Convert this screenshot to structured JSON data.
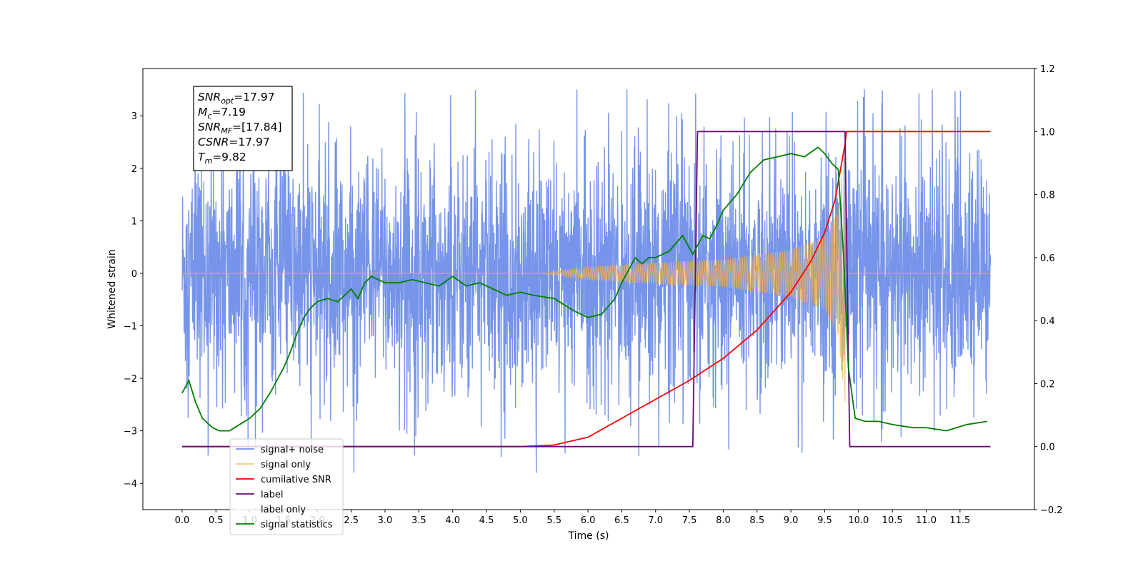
{
  "chart_data": {
    "type": "line",
    "xlabel": "Time (s)",
    "ylabel_left": "Whitened strain",
    "ylabel_right": "",
    "xlim": [
      -0.58,
      12.6
    ],
    "ylim_left": [
      -4.5,
      3.9
    ],
    "ylim_right": [
      -0.2,
      1.2
    ],
    "xticks": [
      0.0,
      0.5,
      1.0,
      1.5,
      2.0,
      2.5,
      3.0,
      3.5,
      4.0,
      4.5,
      5.0,
      5.5,
      6.0,
      6.5,
      7.0,
      7.5,
      8.0,
      8.5,
      9.0,
      9.5,
      10.0,
      10.5,
      11.0,
      11.5
    ],
    "xtick_labels": [
      "0.0",
      "0.5",
      "1.0",
      "1.5",
      "2.0",
      "2.5",
      "3.0",
      "3.5",
      "4.0",
      "4.5",
      "5.0",
      "5.5",
      "6.0",
      "6.5",
      "7.0",
      "7.5",
      "8.0",
      "8.5",
      "9.0",
      "9.5",
      "10.0",
      "10.5",
      "11.0",
      "11.5"
    ],
    "yticks_left": [
      -4,
      -3,
      -2,
      -1,
      0,
      1,
      2,
      3
    ],
    "ytick_labels_left": [
      "−4",
      "−3",
      "−2",
      "−1",
      "0",
      "1",
      "2",
      "3"
    ],
    "yticks_right": [
      -0.2,
      0.0,
      0.2,
      0.4,
      0.6,
      0.8,
      1.0,
      1.2
    ],
    "ytick_labels_right": [
      "−0.2",
      "0.0",
      "0.2",
      "0.4",
      "0.6",
      "0.8",
      "1.0",
      "1.2"
    ],
    "grid": false,
    "legend_position": "lower-left",
    "annotation": [
      {
        "base": "SNR",
        "sub": "opt",
        "value": "=17.97"
      },
      {
        "base": "M",
        "sub": "c",
        "value": "=7.19"
      },
      {
        "base": "SNR",
        "sub": "MF",
        "value": "=[17.84]"
      },
      {
        "base": "CSNR",
        "sub": "",
        "value": "=17.97"
      },
      {
        "base": "T",
        "sub": "m",
        "value": "=9.82"
      }
    ],
    "series": [
      {
        "name": "signal+ noise",
        "axis": "left",
        "color": "#6f8ee8",
        "style": "dense noise trace, roughly ±1.4 baseline with peaks to about ±3.5",
        "approx_envelope": {
          "t_start": 0.0,
          "t_end": 11.95,
          "baseline_amplitude": 1.4,
          "max_spike": 3.5
        }
      },
      {
        "name": "signal only",
        "axis": "left",
        "color": "#f5b04e",
        "style": "chirp oscillation growing in amplitude from about t=5.3 to merger near t=9.82",
        "approx_envelope": {
          "t": [
            5.3,
            6.0,
            7.0,
            8.0,
            9.0,
            9.5,
            9.7,
            9.8
          ],
          "amplitude": [
            0.0,
            0.12,
            0.2,
            0.26,
            0.45,
            0.7,
            1.2,
            2.5
          ]
        }
      },
      {
        "name": "cumilative SNR",
        "axis": "right",
        "color": "#ff0000",
        "x": [
          0.0,
          5.0,
          5.5,
          6.0,
          6.5,
          7.0,
          7.5,
          8.0,
          8.5,
          9.0,
          9.3,
          9.5,
          9.65,
          9.8,
          9.82,
          11.95
        ],
        "y": [
          0.0,
          0.0,
          0.005,
          0.03,
          0.09,
          0.15,
          0.21,
          0.28,
          0.37,
          0.49,
          0.59,
          0.68,
          0.78,
          0.96,
          1.0,
          1.0
        ]
      },
      {
        "name": "label",
        "axis": "right",
        "color": "#6a0a7a",
        "x": [
          0.0,
          7.55,
          7.62,
          9.8,
          9.87,
          11.95
        ],
        "y": [
          0.0,
          0.0,
          1.0,
          1.0,
          0.0,
          0.0
        ]
      },
      {
        "name": "label only",
        "axis": "right",
        "color": "#ffffff",
        "x": [],
        "y": []
      },
      {
        "name": "signal statistics",
        "axis": "right",
        "color": "#008000",
        "x": [
          0.0,
          0.1,
          0.2,
          0.3,
          0.45,
          0.55,
          0.7,
          0.85,
          1.0,
          1.15,
          1.3,
          1.4,
          1.5,
          1.6,
          1.7,
          1.8,
          1.9,
          2.0,
          2.15,
          2.3,
          2.5,
          2.6,
          2.7,
          2.8,
          2.9,
          3.0,
          3.2,
          3.4,
          3.6,
          3.8,
          4.0,
          4.2,
          4.4,
          4.6,
          4.8,
          5.0,
          5.2,
          5.5,
          5.8,
          6.0,
          6.2,
          6.4,
          6.5,
          6.7,
          6.8,
          6.9,
          7.0,
          7.2,
          7.4,
          7.55,
          7.7,
          7.8,
          7.9,
          8.0,
          8.2,
          8.4,
          8.6,
          8.8,
          9.0,
          9.2,
          9.4,
          9.5,
          9.6,
          9.7,
          9.78,
          9.85,
          9.95,
          10.1,
          10.3,
          10.5,
          10.8,
          11.0,
          11.3,
          11.6,
          11.9
        ],
        "y": [
          0.17,
          0.21,
          0.14,
          0.09,
          0.06,
          0.05,
          0.05,
          0.07,
          0.09,
          0.12,
          0.17,
          0.21,
          0.25,
          0.3,
          0.36,
          0.41,
          0.44,
          0.46,
          0.47,
          0.46,
          0.5,
          0.47,
          0.52,
          0.54,
          0.53,
          0.52,
          0.52,
          0.53,
          0.52,
          0.51,
          0.54,
          0.51,
          0.52,
          0.5,
          0.48,
          0.49,
          0.48,
          0.47,
          0.43,
          0.41,
          0.42,
          0.47,
          0.52,
          0.6,
          0.58,
          0.6,
          0.6,
          0.62,
          0.67,
          0.61,
          0.67,
          0.66,
          0.7,
          0.75,
          0.8,
          0.87,
          0.91,
          0.92,
          0.93,
          0.92,
          0.95,
          0.93,
          0.9,
          0.88,
          0.6,
          0.25,
          0.09,
          0.08,
          0.08,
          0.07,
          0.06,
          0.06,
          0.05,
          0.07,
          0.08
        ]
      }
    ]
  }
}
